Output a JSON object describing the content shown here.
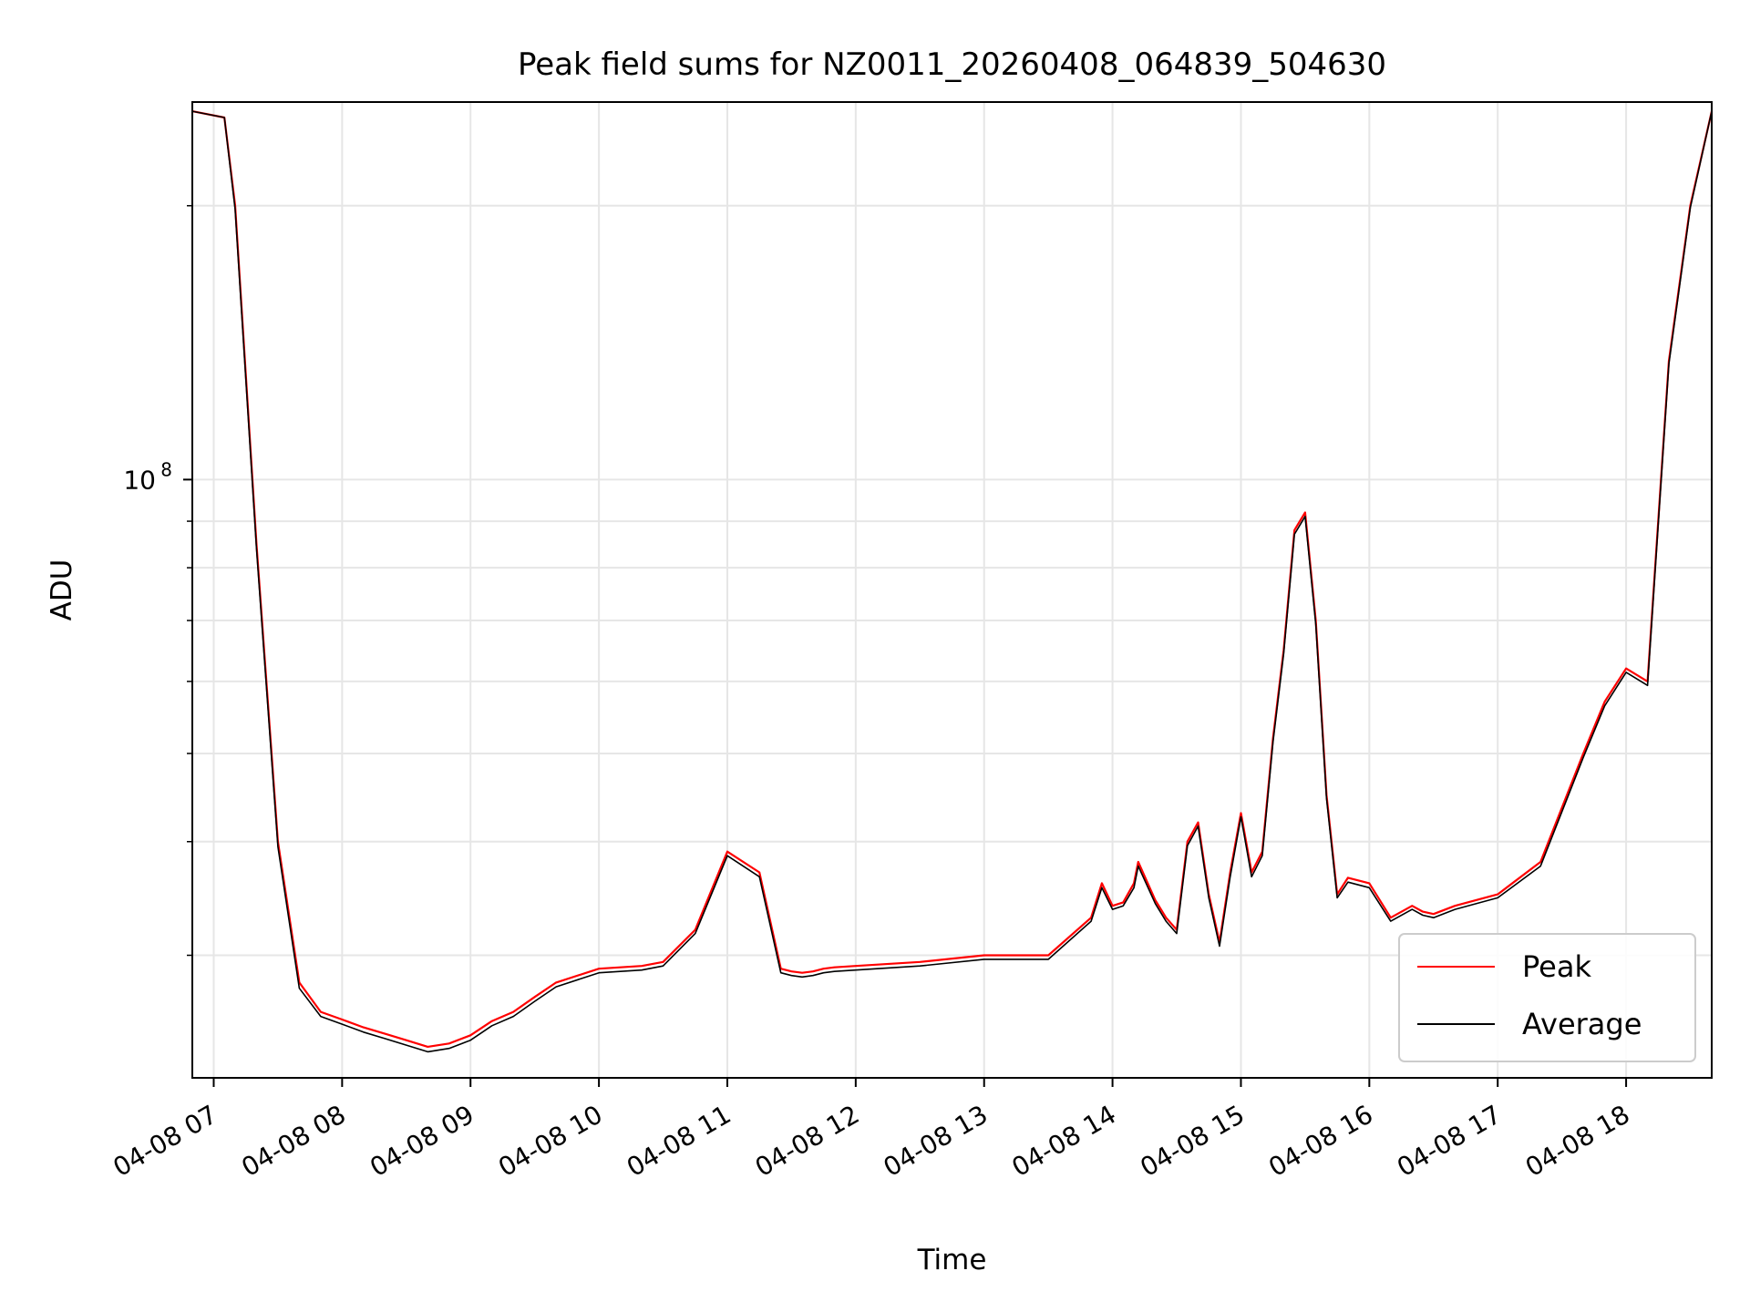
{
  "chart_data": {
    "type": "line",
    "title": "Peak field sums for NZ0011_20260408_064839_504630",
    "xlabel": "Time",
    "ylabel": "ADU",
    "y_scale": "log",
    "y_major_tick": {
      "value": 100000000,
      "base": "10",
      "exponent": "8"
    },
    "ylim": [
      22000000,
      260000000
    ],
    "xlim": [
      "04-08 06:50",
      "04-08 18:40"
    ],
    "x_ticks": [
      "04-08 07",
      "04-08 08",
      "04-08 09",
      "04-08 10",
      "04-08 11",
      "04-08 12",
      "04-08 13",
      "04-08 14",
      "04-08 15",
      "04-08 16",
      "04-08 17",
      "04-08 18"
    ],
    "grid": true,
    "legend_position": "lower-right",
    "series": [
      {
        "name": "Peak",
        "color": "#ff0000",
        "x": [
          "04-08 06:50",
          "04-08 07:05",
          "04-08 07:10",
          "04-08 07:20",
          "04-08 07:30",
          "04-08 07:40",
          "04-08 07:50",
          "04-08 08:00",
          "04-08 08:10",
          "04-08 08:20",
          "04-08 08:30",
          "04-08 08:40",
          "04-08 08:50",
          "04-08 09:00",
          "04-08 09:10",
          "04-08 09:20",
          "04-08 09:30",
          "04-08 09:40",
          "04-08 10:00",
          "04-08 10:20",
          "04-08 10:30",
          "04-08 10:45",
          "04-08 11:00",
          "04-08 11:15",
          "04-08 11:25",
          "04-08 11:30",
          "04-08 11:35",
          "04-08 11:40",
          "04-08 11:45",
          "04-08 11:50",
          "04-08 12:00",
          "04-08 12:30",
          "04-08 13:00",
          "04-08 13:30",
          "04-08 13:50",
          "04-08 13:55",
          "04-08 14:00",
          "04-08 14:05",
          "04-08 14:10",
          "04-08 14:12",
          "04-08 14:20",
          "04-08 14:25",
          "04-08 14:30",
          "04-08 14:35",
          "04-08 14:40",
          "04-08 14:45",
          "04-08 14:50",
          "04-08 14:55",
          "04-08 15:00",
          "04-08 15:05",
          "04-08 15:10",
          "04-08 15:15",
          "04-08 15:20",
          "04-08 15:25",
          "04-08 15:30",
          "04-08 15:35",
          "04-08 15:40",
          "04-08 15:45",
          "04-08 15:50",
          "04-08 16:00",
          "04-08 16:10",
          "04-08 16:20",
          "04-08 16:25",
          "04-08 16:30",
          "04-08 16:40",
          "04-08 17:00",
          "04-08 17:20",
          "04-08 17:40",
          "04-08 17:50",
          "04-08 18:00",
          "04-08 18:10",
          "04-08 18:20",
          "04-08 18:30",
          "04-08 18:40"
        ],
        "values": [
          254000000,
          250000000,
          200000000,
          85000000,
          40000000,
          28000000,
          26000000,
          25500000,
          25000000,
          24600000,
          24200000,
          23800000,
          24000000,
          24500000,
          25400000,
          26000000,
          27000000,
          28000000,
          29000000,
          29200000,
          29500000,
          32000000,
          39000000,
          37000000,
          29000000,
          28800000,
          28700000,
          28800000,
          29000000,
          29100000,
          29200000,
          29500000,
          30000000,
          30000000,
          33000000,
          36000000,
          34000000,
          34300000,
          36000000,
          38000000,
          34500000,
          33000000,
          32000000,
          40000000,
          42000000,
          35000000,
          31000000,
          37000000,
          43000000,
          37000000,
          39000000,
          52000000,
          65000000,
          88000000,
          92000000,
          70000000,
          45000000,
          35000000,
          36500000,
          36000000,
          33000000,
          34000000,
          33500000,
          33300000,
          34000000,
          35000000,
          38000000,
          50000000,
          57000000,
          62000000,
          60000000,
          135000000,
          200000000,
          254000000
        ]
      },
      {
        "name": "Average",
        "color": "#000000",
        "x": [
          "04-08 06:50",
          "04-08 07:05",
          "04-08 07:10",
          "04-08 07:20",
          "04-08 07:30",
          "04-08 07:40",
          "04-08 07:50",
          "04-08 08:00",
          "04-08 08:10",
          "04-08 08:20",
          "04-08 08:30",
          "04-08 08:40",
          "04-08 08:50",
          "04-08 09:00",
          "04-08 09:10",
          "04-08 09:20",
          "04-08 09:30",
          "04-08 09:40",
          "04-08 10:00",
          "04-08 10:20",
          "04-08 10:30",
          "04-08 10:45",
          "04-08 11:00",
          "04-08 11:15",
          "04-08 11:25",
          "04-08 11:30",
          "04-08 11:35",
          "04-08 11:40",
          "04-08 11:45",
          "04-08 11:50",
          "04-08 12:00",
          "04-08 12:30",
          "04-08 13:00",
          "04-08 13:30",
          "04-08 13:50",
          "04-08 13:55",
          "04-08 14:00",
          "04-08 14:05",
          "04-08 14:10",
          "04-08 14:12",
          "04-08 14:20",
          "04-08 14:25",
          "04-08 14:30",
          "04-08 14:35",
          "04-08 14:40",
          "04-08 14:45",
          "04-08 14:50",
          "04-08 14:55",
          "04-08 15:00",
          "04-08 15:05",
          "04-08 15:10",
          "04-08 15:15",
          "04-08 15:20",
          "04-08 15:25",
          "04-08 15:30",
          "04-08 15:35",
          "04-08 15:40",
          "04-08 15:45",
          "04-08 15:50",
          "04-08 16:00",
          "04-08 16:10",
          "04-08 16:20",
          "04-08 16:25",
          "04-08 16:30",
          "04-08 16:40",
          "04-08 17:00",
          "04-08 17:20",
          "04-08 17:40",
          "04-08 17:50",
          "04-08 18:00",
          "04-08 18:10",
          "04-08 18:20",
          "04-08 18:30",
          "04-08 18:40"
        ],
        "values": [
          254000000,
          250000000,
          198000000,
          84000000,
          39500000,
          27600000,
          25700000,
          25200000,
          24700000,
          24300000,
          23900000,
          23500000,
          23700000,
          24200000,
          25100000,
          25700000,
          26700000,
          27700000,
          28700000,
          28900000,
          29200000,
          31700000,
          38600000,
          36600000,
          28700000,
          28500000,
          28400000,
          28500000,
          28700000,
          28800000,
          28900000,
          29200000,
          29700000,
          29700000,
          32700000,
          35600000,
          33700000,
          34000000,
          35600000,
          37600000,
          34200000,
          32700000,
          31700000,
          39600000,
          41600000,
          34700000,
          30700000,
          36600000,
          42600000,
          36600000,
          38600000,
          51500000,
          64400000,
          87100000,
          91100000,
          69300000,
          44600000,
          34700000,
          36100000,
          35600000,
          32700000,
          33700000,
          33200000,
          33000000,
          33700000,
          34700000,
          37600000,
          49500000,
          56400000,
          61400000,
          59400000,
          134000000,
          199000000,
          254000000
        ]
      }
    ]
  }
}
